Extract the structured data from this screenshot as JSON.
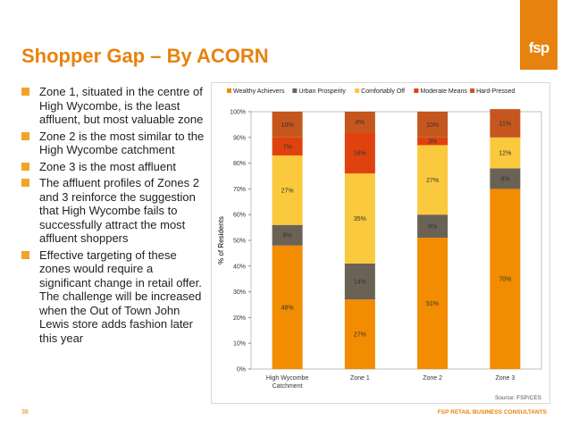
{
  "title": "Shopper Gap – By ACORN",
  "logo_text": "fsp",
  "bullets": [
    "Zone 1, situated in the centre of High Wycombe, is the least affluent, but most valuable zone",
    "Zone 2 is the most similar to the High Wycombe catchment",
    "Zone 3 is the most affluent",
    "The affluent profiles of Zones 2 and 3 reinforce the suggestion that High Wycombe fails to successfully attract the most affluent shoppers",
    "Effective targeting of these zones would require a significant change in retail offer. The challenge will be increased when the Out of Town John Lewis store adds fashion later this year"
  ],
  "page_number": "38",
  "footer": "FSP RETAIL BUSINESS CONSULTANTS",
  "accent_color": "#E8820E",
  "chart_data": {
    "type": "bar",
    "stacked": true,
    "categories": [
      "High Wycombe Catchment",
      "Zone 1",
      "Zone 2",
      "Zone 3"
    ],
    "series": [
      {
        "name": "Wealthy Achievers",
        "color": "#F28C00",
        "values": [
          48,
          27,
          51,
          70
        ],
        "labels": [
          "48%",
          "27%",
          "51%",
          "70%"
        ]
      },
      {
        "name": "Urban Prosperity",
        "color": "#6B6256",
        "values": [
          8,
          14,
          9,
          8
        ],
        "labels": [
          "8%",
          "14%",
          "9%",
          "8%"
        ]
      },
      {
        "name": "Comfortably Off",
        "color": "#FBC93D",
        "values": [
          27,
          35,
          27,
          12
        ],
        "labels": [
          "27%",
          "35%",
          "27%",
          "12%"
        ]
      },
      {
        "name": "Moderate Means",
        "color": "#E0420E",
        "values": [
          7,
          16,
          3,
          0
        ],
        "labels": [
          "7%",
          "16%",
          "3%",
          ""
        ]
      },
      {
        "name": "Hard-Pressed",
        "color": "#C5571E",
        "values": [
          10,
          8,
          10,
          11
        ],
        "labels": [
          "10%",
          "8%",
          "10%",
          "11%"
        ]
      }
    ],
    "ylabel": "% of Residents",
    "ylim": [
      0,
      100
    ],
    "yticks": [
      "0%",
      "10%",
      "20%",
      "30%",
      "40%",
      "50%",
      "60%",
      "70%",
      "80%",
      "90%",
      "100%"
    ],
    "legend_position": "top",
    "source": "Source: FSP/CES"
  }
}
